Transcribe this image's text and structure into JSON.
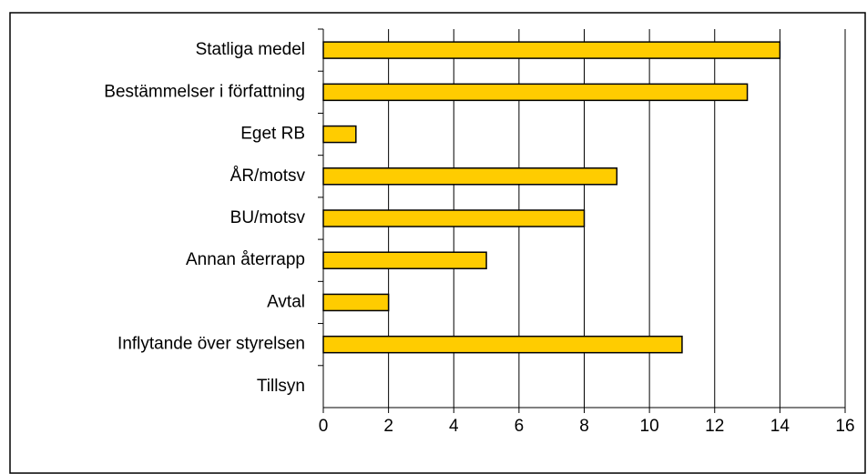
{
  "chart_data": {
    "type": "barh",
    "categories": [
      "Statliga medel",
      "Bestämmelser i författning",
      "Eget RB",
      "ÅR/motsv",
      "BU/motsv",
      "Annan återrapp",
      "Avtal",
      "Inflytande över styrelsen",
      "Tillsyn"
    ],
    "values": [
      14,
      13,
      1,
      9,
      8,
      5,
      2,
      11,
      0
    ],
    "color": "#ffcc00",
    "xlim": [
      0,
      16
    ],
    "xticks": [
      0,
      2,
      4,
      6,
      8,
      10,
      12,
      14,
      16
    ],
    "grid": true
  }
}
